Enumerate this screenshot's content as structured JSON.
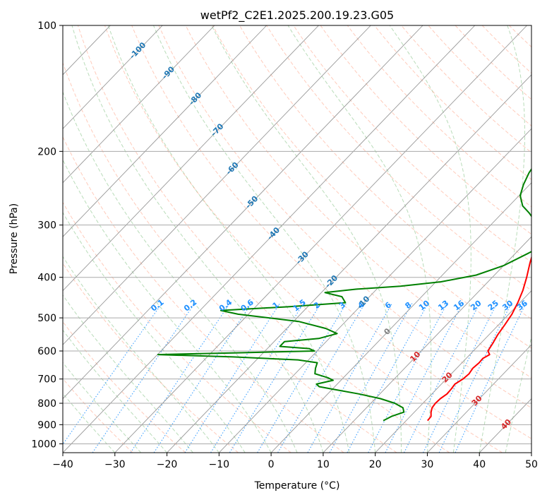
{
  "chart_data": {
    "type": "line",
    "subtype": "skew-t",
    "title": "wetPf2_C2E1.2025.200.19.23.G05",
    "xlabel": "Temperature (°C)",
    "ylabel": "Pressure (hPa)",
    "xlim": [
      -40,
      50
    ],
    "ylim": [
      1050,
      100
    ],
    "yscale": "log",
    "x_ticks": [
      -40,
      -30,
      -20,
      -10,
      0,
      10,
      20,
      30,
      40,
      50
    ],
    "y_ticks": [
      100,
      200,
      300,
      400,
      500,
      600,
      700,
      800,
      900,
      1000
    ],
    "grid": true,
    "series": [
      {
        "color": "#ff0000",
        "points": [
          [
            24.1,
            880
          ],
          [
            24.0,
            860
          ],
          [
            23.2,
            840
          ],
          [
            22.6,
            820
          ],
          [
            22.4,
            800
          ],
          [
            22.5,
            780
          ],
          [
            22.9,
            760
          ],
          [
            22.8,
            740
          ],
          [
            22.6,
            720
          ],
          [
            23.2,
            700
          ],
          [
            23.4,
            680
          ],
          [
            23.1,
            660
          ],
          [
            23.3,
            640
          ],
          [
            23.2,
            625
          ],
          [
            23.8,
            612
          ],
          [
            22.8,
            600
          ],
          [
            22.6,
            590
          ],
          [
            22.3,
            575
          ],
          [
            21.7,
            550
          ],
          [
            21.2,
            520
          ],
          [
            20.6,
            490
          ],
          [
            19.6,
            460
          ],
          [
            18.3,
            430
          ],
          [
            16.6,
            400
          ],
          [
            14.6,
            370
          ],
          [
            13.3,
            350
          ],
          [
            12.0,
            330
          ],
          [
            10.9,
            310
          ],
          [
            10.4,
            300
          ],
          [
            9.6,
            290
          ],
          [
            7.5,
            270
          ],
          [
            5.0,
            250
          ],
          [
            3.2,
            230
          ],
          [
            1.2,
            210
          ],
          [
            -0.8,
            190
          ],
          [
            -3.0,
            170
          ],
          [
            -4.8,
            155
          ],
          [
            -4.7,
            145
          ],
          [
            -2.2,
            137
          ],
          [
            -0.6,
            130
          ],
          [
            -0.8,
            120
          ],
          [
            -0.9,
            110
          ],
          [
            -0.9,
            100
          ]
        ]
      },
      {
        "color": "#008000",
        "points": [
          [
            15.6,
            880
          ],
          [
            16.4,
            860
          ],
          [
            18.0,
            840
          ],
          [
            17.0,
            820
          ],
          [
            14.6,
            800
          ],
          [
            11.0,
            780
          ],
          [
            6.0,
            760
          ],
          [
            0.0,
            740
          ],
          [
            -3.0,
            730
          ],
          [
            -4.0,
            720
          ],
          [
            -1.5,
            705
          ],
          [
            -3.0,
            695
          ],
          [
            -6.2,
            680
          ],
          [
            -7.1,
            660
          ],
          [
            -7.8,
            640
          ],
          [
            -12.0,
            630
          ],
          [
            -25.0,
            620
          ],
          [
            -39.9,
            612
          ],
          [
            -25.0,
            606
          ],
          [
            -10.5,
            600
          ],
          [
            -12.0,
            592
          ],
          [
            -18.0,
            585
          ],
          [
            -18.0,
            570
          ],
          [
            -12.0,
            560
          ],
          [
            -9.4,
            545
          ],
          [
            -12.5,
            530
          ],
          [
            -19.0,
            510
          ],
          [
            -32.0,
            490
          ],
          [
            -36.0,
            480
          ],
          [
            -23.5,
            470
          ],
          [
            -13.5,
            460
          ],
          [
            -15.3,
            445
          ],
          [
            -19.3,
            435
          ],
          [
            -14.0,
            427
          ],
          [
            -6.0,
            420
          ],
          [
            1.0,
            410
          ],
          [
            6.5,
            395
          ],
          [
            10.0,
            375
          ],
          [
            12.5,
            350
          ],
          [
            14.8,
            325
          ],
          [
            13.0,
            305
          ],
          [
            7.5,
            292
          ],
          [
            5.0,
            280
          ],
          [
            2.6,
            270
          ],
          [
            0.2,
            255
          ],
          [
            -1.2,
            240
          ],
          [
            -2.3,
            225
          ],
          [
            -3.0,
            210
          ],
          [
            -4.0,
            200
          ],
          [
            -7.5,
            185
          ],
          [
            -10.0,
            170
          ],
          [
            -12.2,
            160
          ],
          [
            -12.6,
            153
          ],
          [
            -11.0,
            146
          ],
          [
            -9.7,
            140
          ],
          [
            -11.5,
            130
          ],
          [
            -11.6,
            125
          ],
          [
            -10.8,
            118
          ],
          [
            -10.0,
            110
          ],
          [
            -9.0,
            100
          ]
        ]
      }
    ],
    "mixing_ratio_labels": [
      "0.1",
      "0.2",
      "0.4",
      "0.6",
      "1",
      "1.5",
      "2",
      "3",
      "4",
      "6",
      "8",
      "10",
      "13",
      "16",
      "20",
      "25",
      "30",
      "36"
    ],
    "dry_adiabat_labels": [
      "-100",
      "-90",
      "-80",
      "-70",
      "-60",
      "-50",
      "-40",
      "-30",
      "-20",
      "-10",
      "0",
      "10",
      "20",
      "30",
      "40"
    ]
  }
}
